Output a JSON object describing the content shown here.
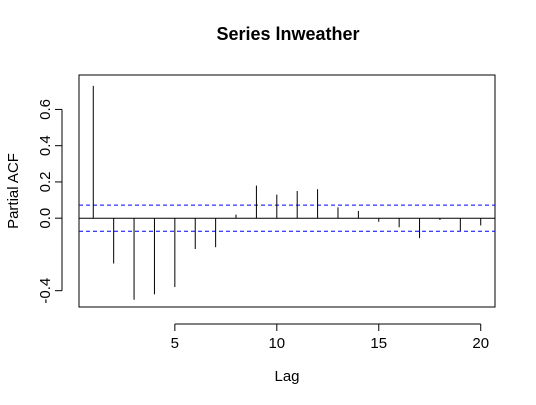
{
  "chart_data": {
    "type": "bar",
    "title": "Series  lnweather",
    "xlabel": "Lag",
    "ylabel": "Partial ACF",
    "x_ticks": [
      5,
      10,
      15,
      20
    ],
    "y_ticks": [
      "-0.4",
      "0.0",
      "0.2",
      "0.4",
      "0.6"
    ],
    "xlim": [
      0.3,
      20.7
    ],
    "ylim": [
      -0.49,
      0.79
    ],
    "confidence_bounds": [
      0.072,
      -0.072
    ],
    "confidence_color": "#0000ff",
    "lags": [
      1,
      2,
      3,
      4,
      5,
      6,
      7,
      8,
      9,
      10,
      11,
      12,
      13,
      14,
      15,
      16,
      17,
      18,
      19,
      20
    ],
    "values": [
      0.73,
      -0.25,
      -0.45,
      -0.42,
      -0.38,
      -0.17,
      -0.16,
      0.02,
      0.18,
      0.13,
      0.15,
      0.16,
      0.06,
      0.04,
      -0.02,
      -0.05,
      -0.11,
      -0.01,
      -0.07,
      -0.04
    ]
  }
}
